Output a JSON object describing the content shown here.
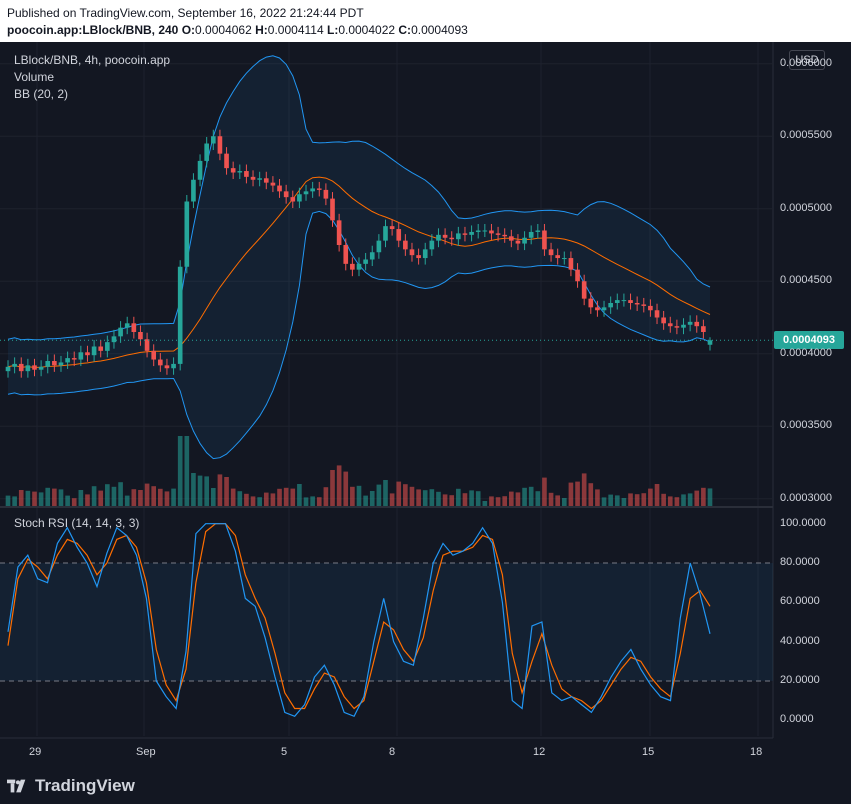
{
  "header": {
    "published_line": "Published on TradingView.com, September 16, 2022 21:24:44 PDT",
    "symbol_line": "poocoin.app:LBlock/BNB, 240",
    "ohlc": {
      "o_label": "O:",
      "o": "0.0004062",
      "h_label": "H:",
      "h": "0.0004114",
      "l_label": "L:",
      "l": "0.0004022",
      "c_label": "C:",
      "c": "0.0004093"
    }
  },
  "legend": {
    "title": "LBlock/BNB, 4h, poocoin.app",
    "volume": "Volume",
    "bb": "BB (20, 2)",
    "stoch": "Stoch RSI (14, 14, 3, 3)"
  },
  "currency_button": "USD",
  "last_price_tag": "0.0004093",
  "price_axis": [
    "0.0006000",
    "0.0005500",
    "0.0005000",
    "0.0004500",
    "0.0004000",
    "0.0003500",
    "0.0003000"
  ],
  "stoch_axis": [
    "100.0000",
    "80.0000",
    "60.0000",
    "40.0000",
    "20.0000",
    "0.0000"
  ],
  "time_axis": [
    "29",
    "Sep",
    "5",
    "8",
    "12",
    "15",
    "18"
  ],
  "brand": "TradingView",
  "colors": {
    "background": "#131722",
    "up": "#26a69a",
    "down": "#ef5350",
    "bb_band": "#2196f3",
    "bb_basis": "#ff6d00",
    "stoch_k": "#2196f3",
    "stoch_d": "#ff6d00",
    "grid": "#1e222d"
  },
  "chart_data": [
    {
      "type": "candlestick",
      "title": "LBlock/BNB, 4h, poocoin.app",
      "ylim": [
        0.000295,
        0.000615
      ],
      "x_ticks": [
        "29",
        "Sep",
        "5",
        "8",
        "12",
        "15",
        "18"
      ],
      "close_series": [
        0.000391,
        0.000393,
        0.000388,
        0.000392,
        0.000389,
        0.000391,
        0.000395,
        0.000392,
        0.000394,
        0.000397,
        0.000396,
        0.000401,
        0.000399,
        0.000405,
        0.000402,
        0.000408,
        0.000412,
        0.000418,
        0.000421,
        0.000415,
        0.00041,
        0.000402,
        0.000396,
        0.000392,
        0.00039,
        0.000393,
        0.00046,
        0.000505,
        0.00052,
        0.000533,
        0.000545,
        0.00055,
        0.000538,
        0.000528,
        0.000525,
        0.000526,
        0.000522,
        0.00052,
        0.000521,
        0.000518,
        0.000516,
        0.000512,
        0.000508,
        0.000505,
        0.00051,
        0.000512,
        0.000514,
        0.000513,
        0.000507,
        0.000492,
        0.000475,
        0.000462,
        0.000458,
        0.000462,
        0.000465,
        0.00047,
        0.000478,
        0.000488,
        0.000486,
        0.000478,
        0.000472,
        0.000468,
        0.000466,
        0.000472,
        0.000478,
        0.000482,
        0.00048,
        0.000479,
        0.000483,
        0.000482,
        0.000484,
        0.000485,
        0.000485,
        0.000483,
        0.000482,
        0.000481,
        0.000478,
        0.000476,
        0.00048,
        0.000484,
        0.000485,
        0.000472,
        0.000468,
        0.000466,
        0.000466,
        0.000458,
        0.00045,
        0.000438,
        0.000432,
        0.00043,
        0.000432,
        0.000435,
        0.000437,
        0.000437,
        0.000435,
        0.000434,
        0.000433,
        0.00043,
        0.000425,
        0.000421,
        0.000419,
        0.000418,
        0.00042,
        0.000422,
        0.000419,
        0.000415,
        0.000409
      ],
      "last": {
        "open": 0.0004062,
        "high": 0.0004114,
        "low": 0.0004022,
        "close": 0.0004093
      },
      "bollinger": {
        "period": 20,
        "mult": 2
      }
    },
    {
      "type": "line",
      "title": "Stoch RSI (14, 14, 3, 3)",
      "ylim": [
        -8,
        108
      ],
      "series": [
        {
          "values": [
            45,
            78,
            84,
            72,
            70,
            90,
            98,
            88,
            80,
            68,
            85,
            98,
            94,
            84,
            62,
            20,
            12,
            6,
            35,
            95,
            100,
            100,
            100,
            86,
            62,
            58,
            42,
            22,
            4,
            2,
            8,
            22,
            28,
            18,
            4,
            2,
            12,
            40,
            62,
            40,
            30,
            28,
            52,
            80,
            90,
            84,
            86,
            90,
            98,
            90,
            60,
            10,
            6,
            48,
            50,
            14,
            10,
            12,
            8,
            4,
            12,
            22,
            30,
            36,
            26,
            18,
            12,
            10,
            52,
            80,
            64,
            44
          ]
        },
        {
          "values": [
            38,
            72,
            82,
            78,
            72,
            84,
            92,
            90,
            84,
            74,
            80,
            92,
            94,
            88,
            70,
            36,
            18,
            10,
            26,
            70,
            96,
            100,
            100,
            94,
            74,
            62,
            52,
            34,
            14,
            6,
            6,
            16,
            24,
            22,
            12,
            6,
            10,
            30,
            50,
            46,
            36,
            30,
            42,
            66,
            84,
            86,
            86,
            88,
            94,
            92,
            74,
            34,
            14,
            30,
            44,
            28,
            16,
            12,
            10,
            6,
            10,
            18,
            26,
            32,
            30,
            22,
            16,
            12,
            34,
            62,
            66,
            58
          ]
        }
      ]
    }
  ]
}
